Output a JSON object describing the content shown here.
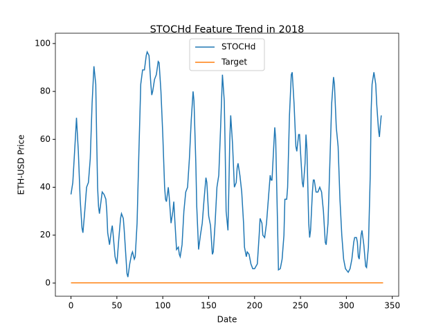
{
  "chart_data": {
    "type": "line",
    "title": "STOCHd Feature Trend in 2018",
    "x_label": "Date",
    "y_label": "ETH-USD Price",
    "series": [
      {
        "name": "STOCHd",
        "color": "#1f77b4",
        "x": [
          0,
          2,
          5,
          6,
          8,
          10,
          12,
          13,
          15,
          17,
          19,
          21,
          23,
          25,
          27,
          28,
          29,
          30,
          31,
          33,
          34,
          36,
          38,
          39,
          40,
          42,
          44,
          45,
          46,
          48,
          50,
          52,
          54,
          55,
          57,
          58,
          60,
          61,
          62,
          64,
          66,
          67,
          69,
          70,
          72,
          74,
          76,
          78,
          80,
          82,
          83,
          85,
          87,
          88,
          89,
          91,
          93,
          95,
          96,
          98,
          100,
          102,
          103,
          104,
          106,
          107,
          109,
          111,
          112,
          113,
          115,
          117,
          118,
          119,
          121,
          123,
          125,
          127,
          129,
          131,
          133,
          134,
          136,
          137,
          139,
          141,
          143,
          145,
          147,
          148,
          150,
          152,
          154,
          155,
          157,
          159,
          161,
          163,
          165,
          167,
          168,
          169,
          171,
          172,
          173,
          174,
          176,
          178,
          180,
          181,
          182,
          184,
          186,
          188,
          189,
          191,
          192,
          194,
          196,
          198,
          200,
          203,
          205,
          206,
          208,
          209,
          211,
          213,
          215,
          217,
          218,
          219,
          221,
          222,
          223,
          225,
          226,
          228,
          230,
          232,
          233,
          235,
          236,
          238,
          240,
          241,
          243,
          245,
          246,
          248,
          249,
          250,
          252,
          253,
          255,
          256,
          257,
          259,
          260,
          261,
          263,
          264,
          265,
          267,
          269,
          271,
          273,
          275,
          277,
          278,
          280,
          282,
          284,
          286,
          287,
          289,
          291,
          293,
          295,
          297,
          299,
          301,
          302,
          304,
          306,
          308,
          309,
          311,
          312,
          313,
          314,
          316,
          317,
          319,
          321,
          322,
          324,
          326,
          327,
          328,
          330,
          332,
          333,
          335,
          336,
          337,
          338
        ],
        "values": [
          37,
          42,
          62,
          69,
          55,
          35,
          23,
          21,
          30,
          40,
          42,
          52,
          75,
          90.5,
          83,
          60,
          40,
          32,
          29,
          35,
          38,
          37,
          35,
          30,
          21,
          16,
          22,
          24,
          20,
          11,
          8,
          18,
          27,
          29,
          27,
          22,
          10,
          4,
          2.5,
          8,
          12,
          13,
          10,
          11,
          25,
          55,
          83,
          89,
          89,
          95,
          96.5,
          95,
          83,
          78.5,
          80,
          85,
          87,
          92.5,
          92,
          80,
          62,
          40,
          35,
          34,
          40,
          36,
          25,
          30,
          34,
          27,
          14,
          15,
          12,
          11,
          16,
          30,
          38,
          40,
          52,
          68,
          80,
          76,
          50,
          32,
          14,
          20,
          25,
          35,
          44,
          42,
          28,
          24,
          12,
          13,
          25,
          40,
          45,
          65,
          87,
          76,
          55,
          30,
          22,
          40,
          60,
          70,
          58,
          40,
          42,
          48,
          50,
          45,
          38,
          25,
          15,
          11,
          13,
          12,
          8,
          6,
          6,
          8,
          20,
          27,
          25,
          20,
          19,
          25,
          35,
          45,
          43,
          43,
          58,
          65,
          60,
          25,
          5.5,
          6,
          10,
          20,
          35,
          35,
          40,
          70,
          87,
          88,
          75,
          57,
          55,
          62,
          62,
          55,
          42,
          40,
          50,
          62,
          56,
          25,
          19,
          22,
          38,
          43,
          43,
          38,
          38,
          40,
          38,
          30,
          17,
          16,
          25,
          50,
          75,
          86,
          83,
          65,
          57,
          35,
          20,
          10,
          6,
          5,
          4.5,
          6,
          10,
          17,
          19,
          19,
          17,
          11,
          10,
          20,
          22,
          16,
          7,
          6.5,
          15,
          45,
          72,
          83,
          88,
          83,
          75,
          64,
          61,
          66,
          70
        ]
      },
      {
        "name": "Target",
        "color": "#ff7f0e",
        "x": [
          0,
          340
        ],
        "values": [
          0.1,
          0.1
        ]
      }
    ],
    "xlim": [
      -17,
      357
    ],
    "xticks": [
      0,
      50,
      100,
      150,
      200,
      250,
      300,
      350
    ],
    "ylim": [
      -5.5,
      104.3
    ],
    "yticks": [
      0,
      20,
      40,
      60,
      80,
      100
    ],
    "legend": "upper center"
  }
}
